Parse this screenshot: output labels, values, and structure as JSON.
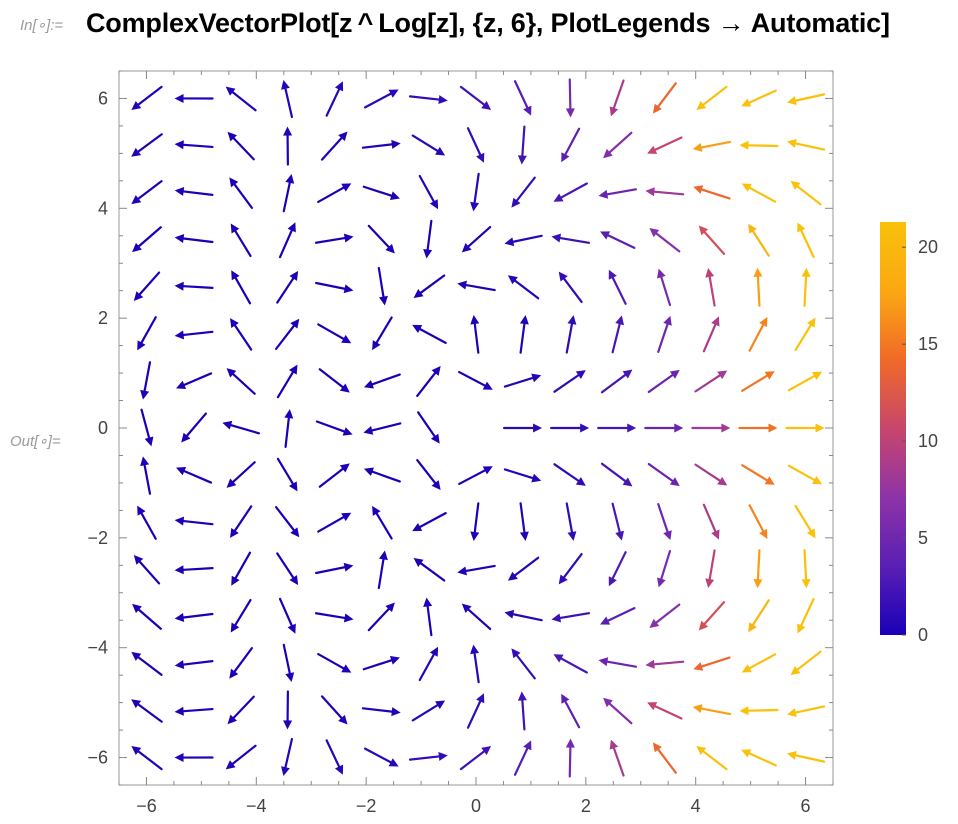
{
  "input": {
    "label": "In[∘]:=",
    "code": "ComplexVectorPlot[z ^ Log[z], {z, 6}, PlotLegends → Automatic]"
  },
  "output": {
    "label": "Out[∘]="
  },
  "chart_data": {
    "type": "vector_field",
    "function": "z^Log[z]",
    "xlim": [
      -6.5,
      6.5
    ],
    "ylim": [
      -6.5,
      6.5
    ],
    "x_ticks": [
      -6,
      -4,
      -2,
      0,
      2,
      4,
      6
    ],
    "y_ticks": [
      -6,
      -4,
      -2,
      0,
      2,
      4,
      6
    ],
    "x_tick_labels": [
      "−6",
      "−4",
      "−2",
      "0",
      "2",
      "4",
      "6"
    ],
    "y_tick_labels": [
      "−6",
      "−4",
      "−2",
      "0",
      "2",
      "4",
      "6"
    ],
    "grid": false,
    "legend": {
      "type": "colorbar",
      "placement": "right",
      "range": [
        0,
        21.3
      ],
      "ticks": [
        0,
        5,
        10,
        15,
        20
      ],
      "tick_labels": [
        "0",
        "5",
        "10",
        "15",
        "20"
      ],
      "colors": [
        "#1a00b8",
        "#5a1fb4",
        "#8e33a8",
        "#c8466c",
        "#f06a28",
        "#fba812",
        "#f9c10a"
      ]
    },
    "field_range": [
      -6,
      6
    ],
    "field_samples_per_axis": 15
  }
}
